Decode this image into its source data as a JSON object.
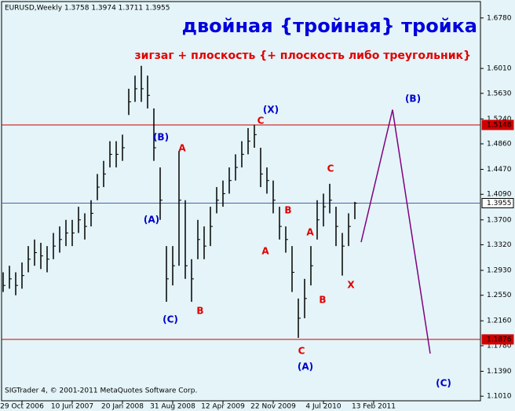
{
  "chart_data": {
    "type": "hlc",
    "header": "EURUSD,Weekly  1.3758 1.3974 1.3711 1.3955",
    "title": "двойная {тройная} тройка",
    "subtitle": "зигзаг + плоскость {+ плоскость либо треугольник}",
    "footer": "SIGTrader 4, © 2001-2011 MetaQuotes Software Corp.",
    "bar_color": "#000000",
    "categories": [
      null,
      null,
      null,
      "29 Oct 2006",
      null,
      null,
      null,
      null,
      null,
      null,
      null,
      "10 Jun 2007",
      null,
      null,
      null,
      null,
      null,
      null,
      null,
      "20 Jan 2008",
      null,
      null,
      null,
      null,
      null,
      null,
      null,
      "31 Aug 2008",
      null,
      null,
      null,
      null,
      null,
      null,
      null,
      "12 Apr 2009",
      null,
      null,
      null,
      null,
      null,
      null,
      null,
      "22 Nov 2009",
      null,
      null,
      null,
      null,
      null,
      null,
      null,
      "4 Jul 2010",
      null,
      null,
      null,
      null,
      null,
      null,
      null,
      "13 Feb 2011",
      null,
      null,
      null,
      null,
      null,
      null,
      null,
      null,
      null,
      null
    ],
    "series": [
      {
        "name": "High",
        "values": [
          1.29,
          1.3,
          1.29,
          1.305,
          1.33,
          1.34,
          1.335,
          1.33,
          1.35,
          1.36,
          1.37,
          1.37,
          1.39,
          1.38,
          1.4,
          1.44,
          1.46,
          1.49,
          1.49,
          1.5,
          1.57,
          1.59,
          1.605,
          1.59,
          1.54,
          1.45,
          1.33,
          1.33,
          1.475,
          1.4,
          1.31,
          1.37,
          1.36,
          1.39,
          1.42,
          1.43,
          1.45,
          1.47,
          1.49,
          1.51,
          1.515,
          1.48,
          1.45,
          1.43,
          1.39,
          1.36,
          1.33,
          1.25,
          1.28,
          1.33,
          1.4,
          1.41,
          1.425,
          1.39,
          1.35,
          1.38,
          1.3974,
          null,
          null,
          null,
          null,
          null,
          null,
          null,
          null,
          null,
          null,
          null,
          null,
          null
        ]
      },
      {
        "name": "Low",
        "values": [
          1.26,
          1.265,
          1.255,
          1.265,
          1.29,
          1.3,
          1.295,
          1.29,
          1.31,
          1.32,
          1.33,
          1.33,
          1.35,
          1.34,
          1.36,
          1.4,
          1.42,
          1.45,
          1.45,
          1.46,
          1.53,
          1.55,
          1.55,
          1.54,
          1.46,
          1.37,
          1.245,
          1.27,
          1.3,
          1.28,
          1.245,
          1.31,
          1.31,
          1.33,
          1.38,
          1.39,
          1.41,
          1.43,
          1.45,
          1.47,
          1.48,
          1.42,
          1.41,
          1.38,
          1.34,
          1.32,
          1.26,
          1.19,
          1.22,
          1.27,
          1.34,
          1.36,
          1.38,
          1.33,
          1.285,
          1.33,
          1.3711,
          null,
          null,
          null,
          null,
          null,
          null,
          null,
          null,
          null,
          null,
          null,
          null,
          null
        ]
      },
      {
        "name": "Close",
        "values": [
          1.27,
          1.28,
          1.27,
          1.285,
          1.31,
          1.32,
          1.315,
          1.31,
          1.33,
          1.34,
          1.35,
          1.35,
          1.37,
          1.36,
          1.38,
          1.42,
          1.44,
          1.47,
          1.47,
          1.48,
          1.55,
          1.57,
          1.57,
          1.56,
          1.48,
          1.4,
          1.28,
          1.3,
          1.4,
          1.3,
          1.28,
          1.34,
          1.33,
          1.36,
          1.4,
          1.41,
          1.43,
          1.45,
          1.47,
          1.49,
          1.5,
          1.44,
          1.43,
          1.4,
          1.36,
          1.34,
          1.29,
          1.22,
          1.25,
          1.3,
          1.37,
          1.39,
          1.4,
          1.36,
          1.33,
          1.36,
          1.3955,
          null,
          null,
          null,
          null,
          null,
          null,
          null,
          null,
          null,
          null,
          null,
          null,
          null
        ]
      }
    ],
    "forecast": {
      "color": "#800080",
      "values": [
        null,
        null,
        null,
        null,
        null,
        null,
        null,
        null,
        null,
        null,
        null,
        null,
        null,
        null,
        null,
        null,
        null,
        null,
        null,
        null,
        null,
        null,
        null,
        null,
        null,
        null,
        null,
        null,
        null,
        null,
        null,
        null,
        null,
        null,
        null,
        null,
        null,
        null,
        null,
        null,
        null,
        null,
        null,
        null,
        null,
        null,
        null,
        null,
        null,
        null,
        null,
        null,
        null,
        null,
        null,
        null,
        null,
        1.336,
        null,
        null,
        null,
        null,
        1.538,
        null,
        null,
        null,
        null,
        null,
        1.166,
        null
      ]
    },
    "levels": [
      {
        "value": 1.5148,
        "color": "#d00000"
      },
      {
        "value": 1.3955,
        "color": "#5060a0"
      },
      {
        "value": 1.1876,
        "color": "#d00000"
      }
    ],
    "ylim": [
      1.094,
      1.703
    ],
    "yticks": [
      {
        "value": 1.678,
        "label": "1.6780"
      },
      {
        "value": 1.601,
        "label": "1.6010"
      },
      {
        "value": 1.563,
        "label": "1.5630"
      },
      {
        "value": 1.524,
        "label": "1.5240"
      },
      {
        "value": 1.486,
        "label": "1.4860"
      },
      {
        "value": 1.447,
        "label": "1.4470"
      },
      {
        "value": 1.409,
        "label": "1.4090"
      },
      {
        "value": 1.37,
        "label": "1.3700"
      },
      {
        "value": 1.332,
        "label": "1.3320"
      },
      {
        "value": 1.293,
        "label": "1.2930"
      },
      {
        "value": 1.255,
        "label": "1.2550"
      },
      {
        "value": 1.216,
        "label": "1.2160"
      },
      {
        "value": 1.178,
        "label": "1.1780"
      },
      {
        "value": 1.139,
        "label": "1.1390"
      },
      {
        "value": 1.101,
        "label": "1.1010"
      }
    ],
    "annotations": [
      {
        "text": "(X)",
        "color": "#0000cc"
      },
      {
        "text": "C",
        "color": "#e00000"
      },
      {
        "text": "(B)",
        "color": "#0000cc"
      },
      {
        "text": "A",
        "color": "#e00000"
      },
      {
        "text": "C",
        "color": "#e00000"
      },
      {
        "text": "(B)",
        "color": "#0000cc"
      },
      {
        "text": "B",
        "color": "#e00000"
      },
      {
        "text": "(A)",
        "color": "#0000cc"
      },
      {
        "text": "A",
        "color": "#e00000"
      },
      {
        "text": "A",
        "color": "#e00000"
      },
      {
        "text": "X",
        "color": "#e00000"
      },
      {
        "text": "B",
        "color": "#e00000"
      },
      {
        "text": "B",
        "color": "#e00000"
      },
      {
        "text": "(C)",
        "color": "#0000cc"
      },
      {
        "text": "C",
        "color": "#e00000"
      },
      {
        "text": "(A)",
        "color": "#0000cc"
      },
      {
        "text": "(C)",
        "color": "#0000cc"
      }
    ]
  }
}
